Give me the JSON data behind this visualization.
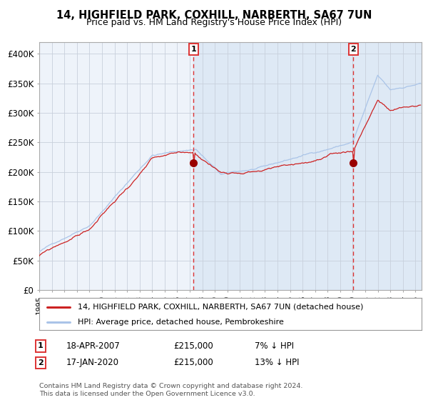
{
  "title": "14, HIGHFIELD PARK, COXHILL, NARBERTH, SA67 7UN",
  "subtitle": "Price paid vs. HM Land Registry's House Price Index (HPI)",
  "legend_line1": "14, HIGHFIELD PARK, COXHILL, NARBERTH, SA67 7UN (detached house)",
  "legend_line2": "HPI: Average price, detached house, Pembrokeshire",
  "annotation1_label": "1",
  "annotation1_date": "18-APR-2007",
  "annotation1_price": "£215,000",
  "annotation1_hpi": "7% ↓ HPI",
  "annotation2_label": "2",
  "annotation2_date": "17-JAN-2020",
  "annotation2_price": "£215,000",
  "annotation2_hpi": "13% ↓ HPI",
  "footnote": "Contains HM Land Registry data © Crown copyright and database right 2024.\nThis data is licensed under the Open Government Licence v3.0.",
  "hpi_line_color": "#aac4e8",
  "price_line_color": "#cc2222",
  "marker_color": "#990000",
  "vline_color": "#dd3333",
  "shade_color": "#dce8f5",
  "plot_bg_color": "#eef3fa",
  "grid_color": "#c8d0dc",
  "ylim": [
    0,
    420000
  ],
  "yticks": [
    0,
    50000,
    100000,
    150000,
    200000,
    250000,
    300000,
    350000,
    400000
  ],
  "ytick_labels": [
    "£0",
    "£50K",
    "£100K",
    "£150K",
    "£200K",
    "£250K",
    "£300K",
    "£350K",
    "£400K"
  ],
  "purchase1_year": 2007.3,
  "purchase1_value": 215000,
  "purchase2_year": 2020.05,
  "purchase2_value": 215000,
  "xmin": 1995.0,
  "xmax": 2025.5
}
